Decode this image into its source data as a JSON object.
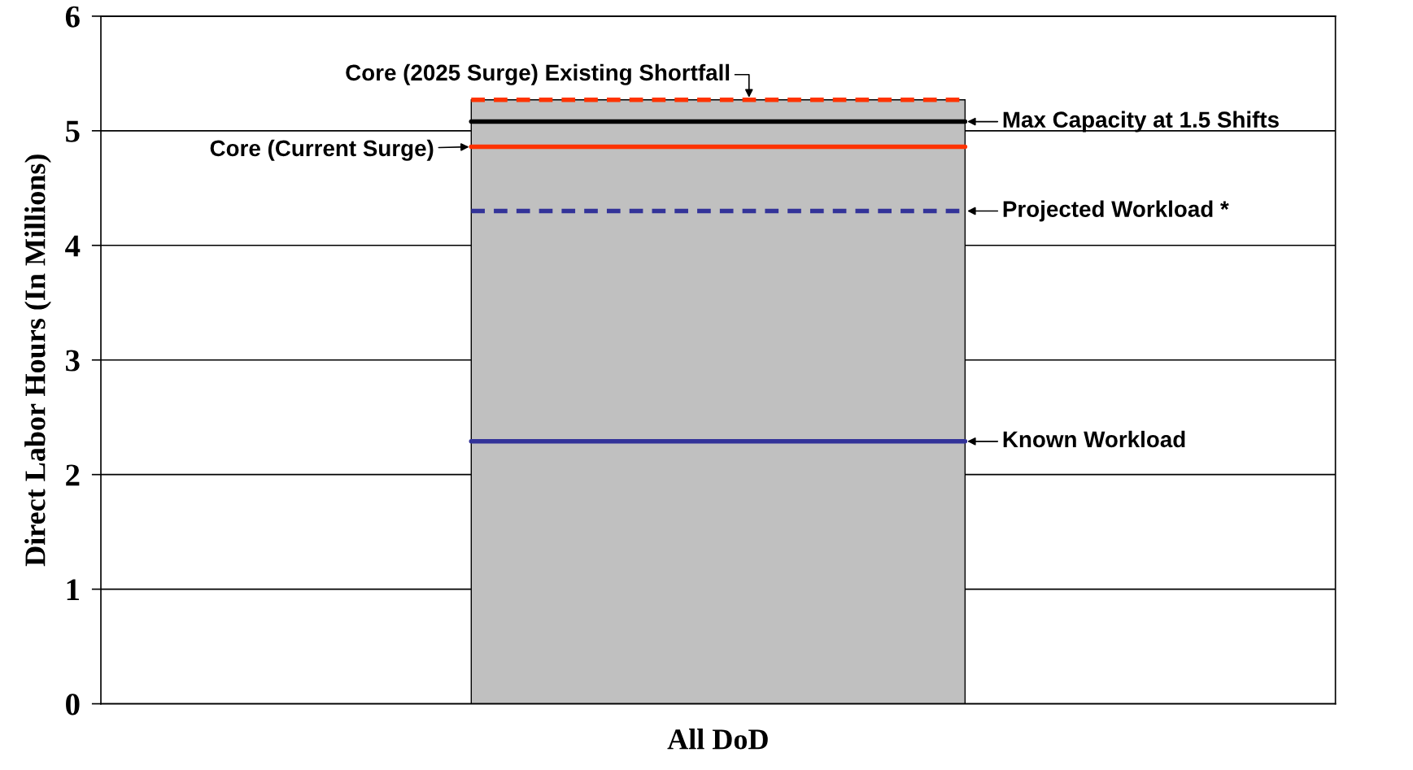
{
  "chart_data": {
    "type": "bar",
    "ylabel": "Direct Labor Hours (In Millions)",
    "categories": [
      "All DoD"
    ],
    "values": [
      5.27
    ],
    "color": "#c0c0c0",
    "ylim": [
      0,
      6
    ],
    "yticks": [
      0,
      1,
      2,
      3,
      4,
      5,
      6
    ],
    "grid": "y",
    "ref_lines": [
      {
        "axis": "y",
        "value": 5.27,
        "label": "Core (2025 Surge) Existing Shortfall",
        "color": "#ff3300",
        "line_style": "dashed"
      },
      {
        "axis": "y",
        "value": 5.08,
        "label": "Max Capacity at 1.5 Shifts",
        "color": "#000000",
        "line_style": "solid"
      },
      {
        "axis": "y",
        "value": 4.86,
        "label": "Core (Current Surge)",
        "color": "#ff3300",
        "line_style": "solid"
      },
      {
        "axis": "y",
        "value": 4.3,
        "label": "Projected Workload *",
        "color": "#333399",
        "line_style": "dashed"
      },
      {
        "axis": "y",
        "value": 2.29,
        "label": "Known Workload",
        "color": "#333399",
        "line_style": "solid"
      }
    ]
  }
}
